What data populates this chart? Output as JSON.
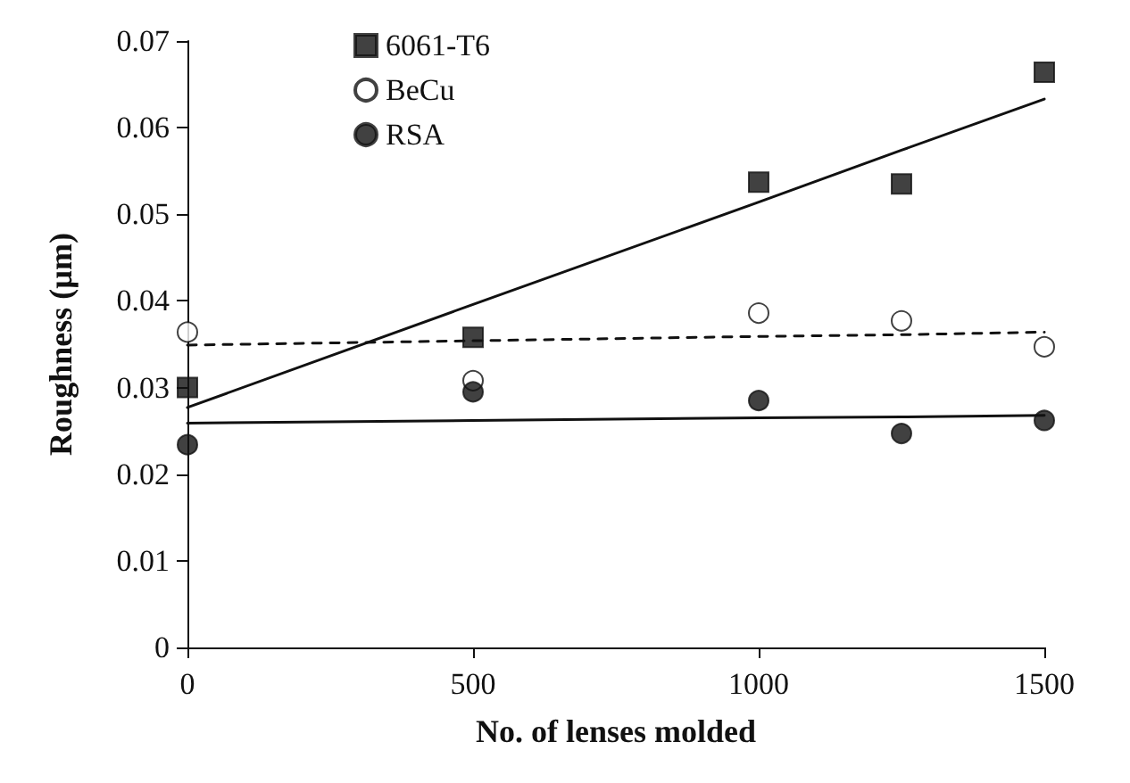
{
  "chart_data": {
    "type": "scatter",
    "xlabel": "No. of lenses molded",
    "ylabel": "Roughness (µm)",
    "x": [
      0,
      500,
      1000,
      1250,
      1500
    ],
    "series": [
      {
        "name": "6061-T6",
        "color": "#111111",
        "marker": "square",
        "values": [
          0.03,
          0.0358,
          0.0537,
          0.0535,
          0.0664
        ]
      },
      {
        "name": "BeCu",
        "color": "#ffffff",
        "marker": "circle",
        "values": [
          0.0364,
          0.0308,
          0.0386,
          0.0377,
          0.0347
        ]
      },
      {
        "name": "RSA",
        "color": "#111111",
        "marker": "circle",
        "values": [
          0.0234,
          0.0295,
          0.0285,
          0.0247,
          0.0262
        ]
      },
      {
        "type": "line",
        "color": "#111111",
        "marker": "none",
        "line_style": "solid",
        "values": [
          0.0277,
          0.0396,
          0.0514,
          0.0574,
          0.0633
        ]
      },
      {
        "type": "line",
        "color": "#111111",
        "marker": "none",
        "line_style": "dashed",
        "values": [
          0.0349,
          0.0354,
          0.0359,
          0.0361,
          0.0364
        ]
      },
      {
        "type": "line",
        "color": "#111111",
        "marker": "none",
        "line_style": "solid",
        "values": [
          0.0259,
          0.0262,
          0.0265,
          0.0266,
          0.0268
        ]
      }
    ],
    "xlim": [
      0,
      1500
    ],
    "xticks": [
      0,
      500,
      1000,
      1500
    ],
    "ylim": [
      0,
      0.07
    ],
    "yticks": [
      0,
      0.01,
      0.02,
      0.03,
      0.04,
      0.05,
      0.06,
      0.07
    ],
    "grid": false,
    "legend": "top left"
  }
}
